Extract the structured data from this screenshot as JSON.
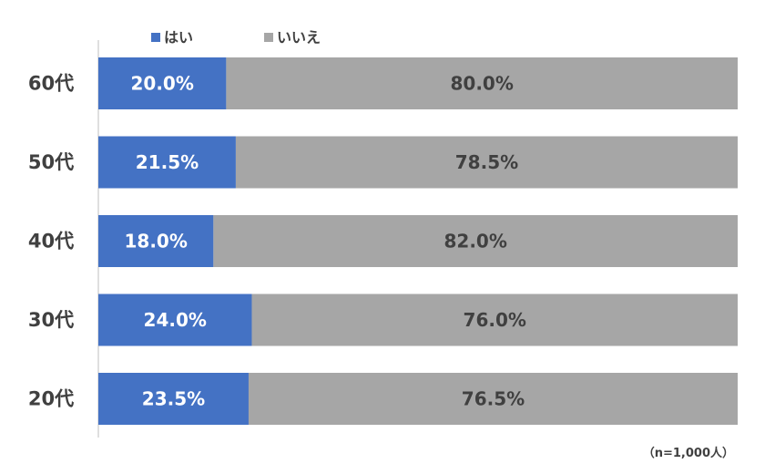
{
  "chart_data": {
    "type": "bar",
    "orientation": "horizontal",
    "stacked": true,
    "percent_stacked": true,
    "categories": [
      "60代",
      "50代",
      "40代",
      "30代",
      "20代"
    ],
    "series": [
      {
        "name": "はい",
        "values": [
          20.0,
          21.5,
          18.0,
          24.0,
          23.5
        ],
        "color": "#4472C4",
        "label_color": "#ffffff"
      },
      {
        "name": "いいえ",
        "values": [
          80.0,
          78.5,
          82.0,
          76.0,
          76.5
        ],
        "color": "#A6A6A6",
        "label_color": "#404040"
      }
    ],
    "value_suffix": "%",
    "xlim": [
      0,
      100
    ],
    "legend_position": "top",
    "grid": false,
    "title": "",
    "xlabel": "",
    "ylabel": ""
  },
  "note": "（n=1,000人）"
}
